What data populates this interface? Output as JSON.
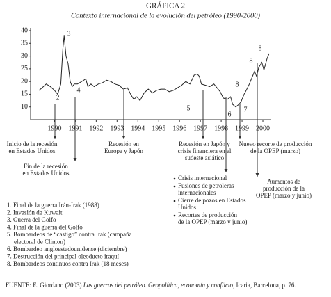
{
  "chart_data": {
    "type": "line",
    "title": "GRÁFICA 2",
    "subtitle": "Contexto internacional de la evolución del petróleo (1990-2000)",
    "xlim": [
      1988.85,
      2000.4
    ],
    "xticks": [
      1990,
      1991,
      1992,
      1993,
      1994,
      1995,
      1996,
      1997,
      1998,
      1999,
      2000
    ],
    "ylim": [
      5,
      40
    ],
    "yticks": [
      10,
      15,
      20,
      25,
      30,
      35,
      40
    ],
    "series": [
      {
        "color": "#222222",
        "x": [
          1989.25,
          1989.4,
          1989.6,
          1989.8,
          1990.0,
          1990.15,
          1990.3,
          1990.4,
          1990.46,
          1990.55,
          1990.65,
          1990.75,
          1990.85,
          1990.95,
          1991.1,
          1991.3,
          1991.5,
          1991.6,
          1991.75,
          1991.9,
          1992.1,
          1992.3,
          1992.5,
          1992.7,
          1992.9,
          1993.1,
          1993.3,
          1993.5,
          1993.65,
          1993.8,
          1993.95,
          1994.1,
          1994.3,
          1994.5,
          1994.7,
          1994.9,
          1995.1,
          1995.3,
          1995.5,
          1995.7,
          1995.9,
          1996.1,
          1996.3,
          1996.5,
          1996.7,
          1996.85,
          1996.95,
          1997.05,
          1997.25,
          1997.45,
          1997.65,
          1997.8,
          1997.95,
          1998.1,
          1998.3,
          1998.45,
          1998.55,
          1998.7,
          1998.85,
          1998.95,
          1999.1,
          1999.2,
          1999.35,
          1999.5,
          1999.6,
          1999.7,
          1999.8,
          1999.95,
          2000.05,
          2000.2,
          2000.3
        ],
        "values": [
          16.5,
          17.5,
          19,
          18,
          16.5,
          15,
          19,
          33,
          38,
          30,
          27,
          20,
          18,
          19,
          19,
          20,
          21,
          18,
          19,
          18,
          19,
          19.5,
          20.5,
          20,
          19,
          18.5,
          17,
          17.5,
          15,
          13,
          14,
          12.5,
          15.5,
          17,
          15.5,
          16.5,
          17,
          17,
          16,
          16.5,
          17.5,
          18.5,
          20,
          19,
          22.5,
          23,
          22,
          19,
          18.5,
          18,
          19,
          17.5,
          16,
          13.5,
          13,
          14,
          11,
          10,
          11,
          12,
          15,
          16.5,
          19,
          22,
          24,
          22,
          25.5,
          27.5,
          24.5,
          29,
          31
        ]
      }
    ],
    "annotations": [
      "2",
      "3",
      "4",
      "5",
      "6",
      "7",
      "8",
      "8",
      "8"
    ],
    "events": [
      [
        "Inicio de la recesión",
        "en Estados Unidos"
      ],
      [
        "Fin de la recesión",
        "en Estados Unidos"
      ],
      [
        "Recesión en",
        "Europa y Japón"
      ],
      [
        "Recesión en Japón y",
        "crisis financiera en el",
        "sudeste asiático"
      ],
      [
        "Nuevo recorte de producción",
        "de la OPEP (marzo)"
      ],
      [
        "Aumentos de",
        "producción de la",
        "OPEP (marzo y junio)"
      ]
    ],
    "bullets": [
      [
        "Crisis internacional"
      ],
      [
        "Fusiones de petroleras",
        "internacionales"
      ],
      [
        "Cierre de pozos en Estados",
        "Unidos"
      ],
      [
        "Recortes de producción",
        "de la OPEP (marzo y junio)"
      ]
    ],
    "notes": [
      [
        "1. Final de la guerra Irán-Irak (1988)"
      ],
      [
        "2. Invasión de Kuwait"
      ],
      [
        "3. Guerra del Golfo"
      ],
      [
        "4. Final de la guerra del Golfo"
      ],
      [
        "5. Bombardeos de “castigo” contra Irak (campaña",
        "electoral de Clinton)"
      ],
      [
        "6. Bombardeo angloestadounidense (diciembre)"
      ],
      [
        "7. Destrucción del principal oleoducto iraquí"
      ],
      [
        "8. Bombardeos continuos contra Irak (18 meses)"
      ]
    ],
    "source": {
      "author": "FUENTE: E. Giordano (2003) ",
      "work": "Las guerras del petróleo. Geopolítica, economía y conflicto",
      "publisher": ", Icaria, Barcelona, p. 76."
    }
  }
}
